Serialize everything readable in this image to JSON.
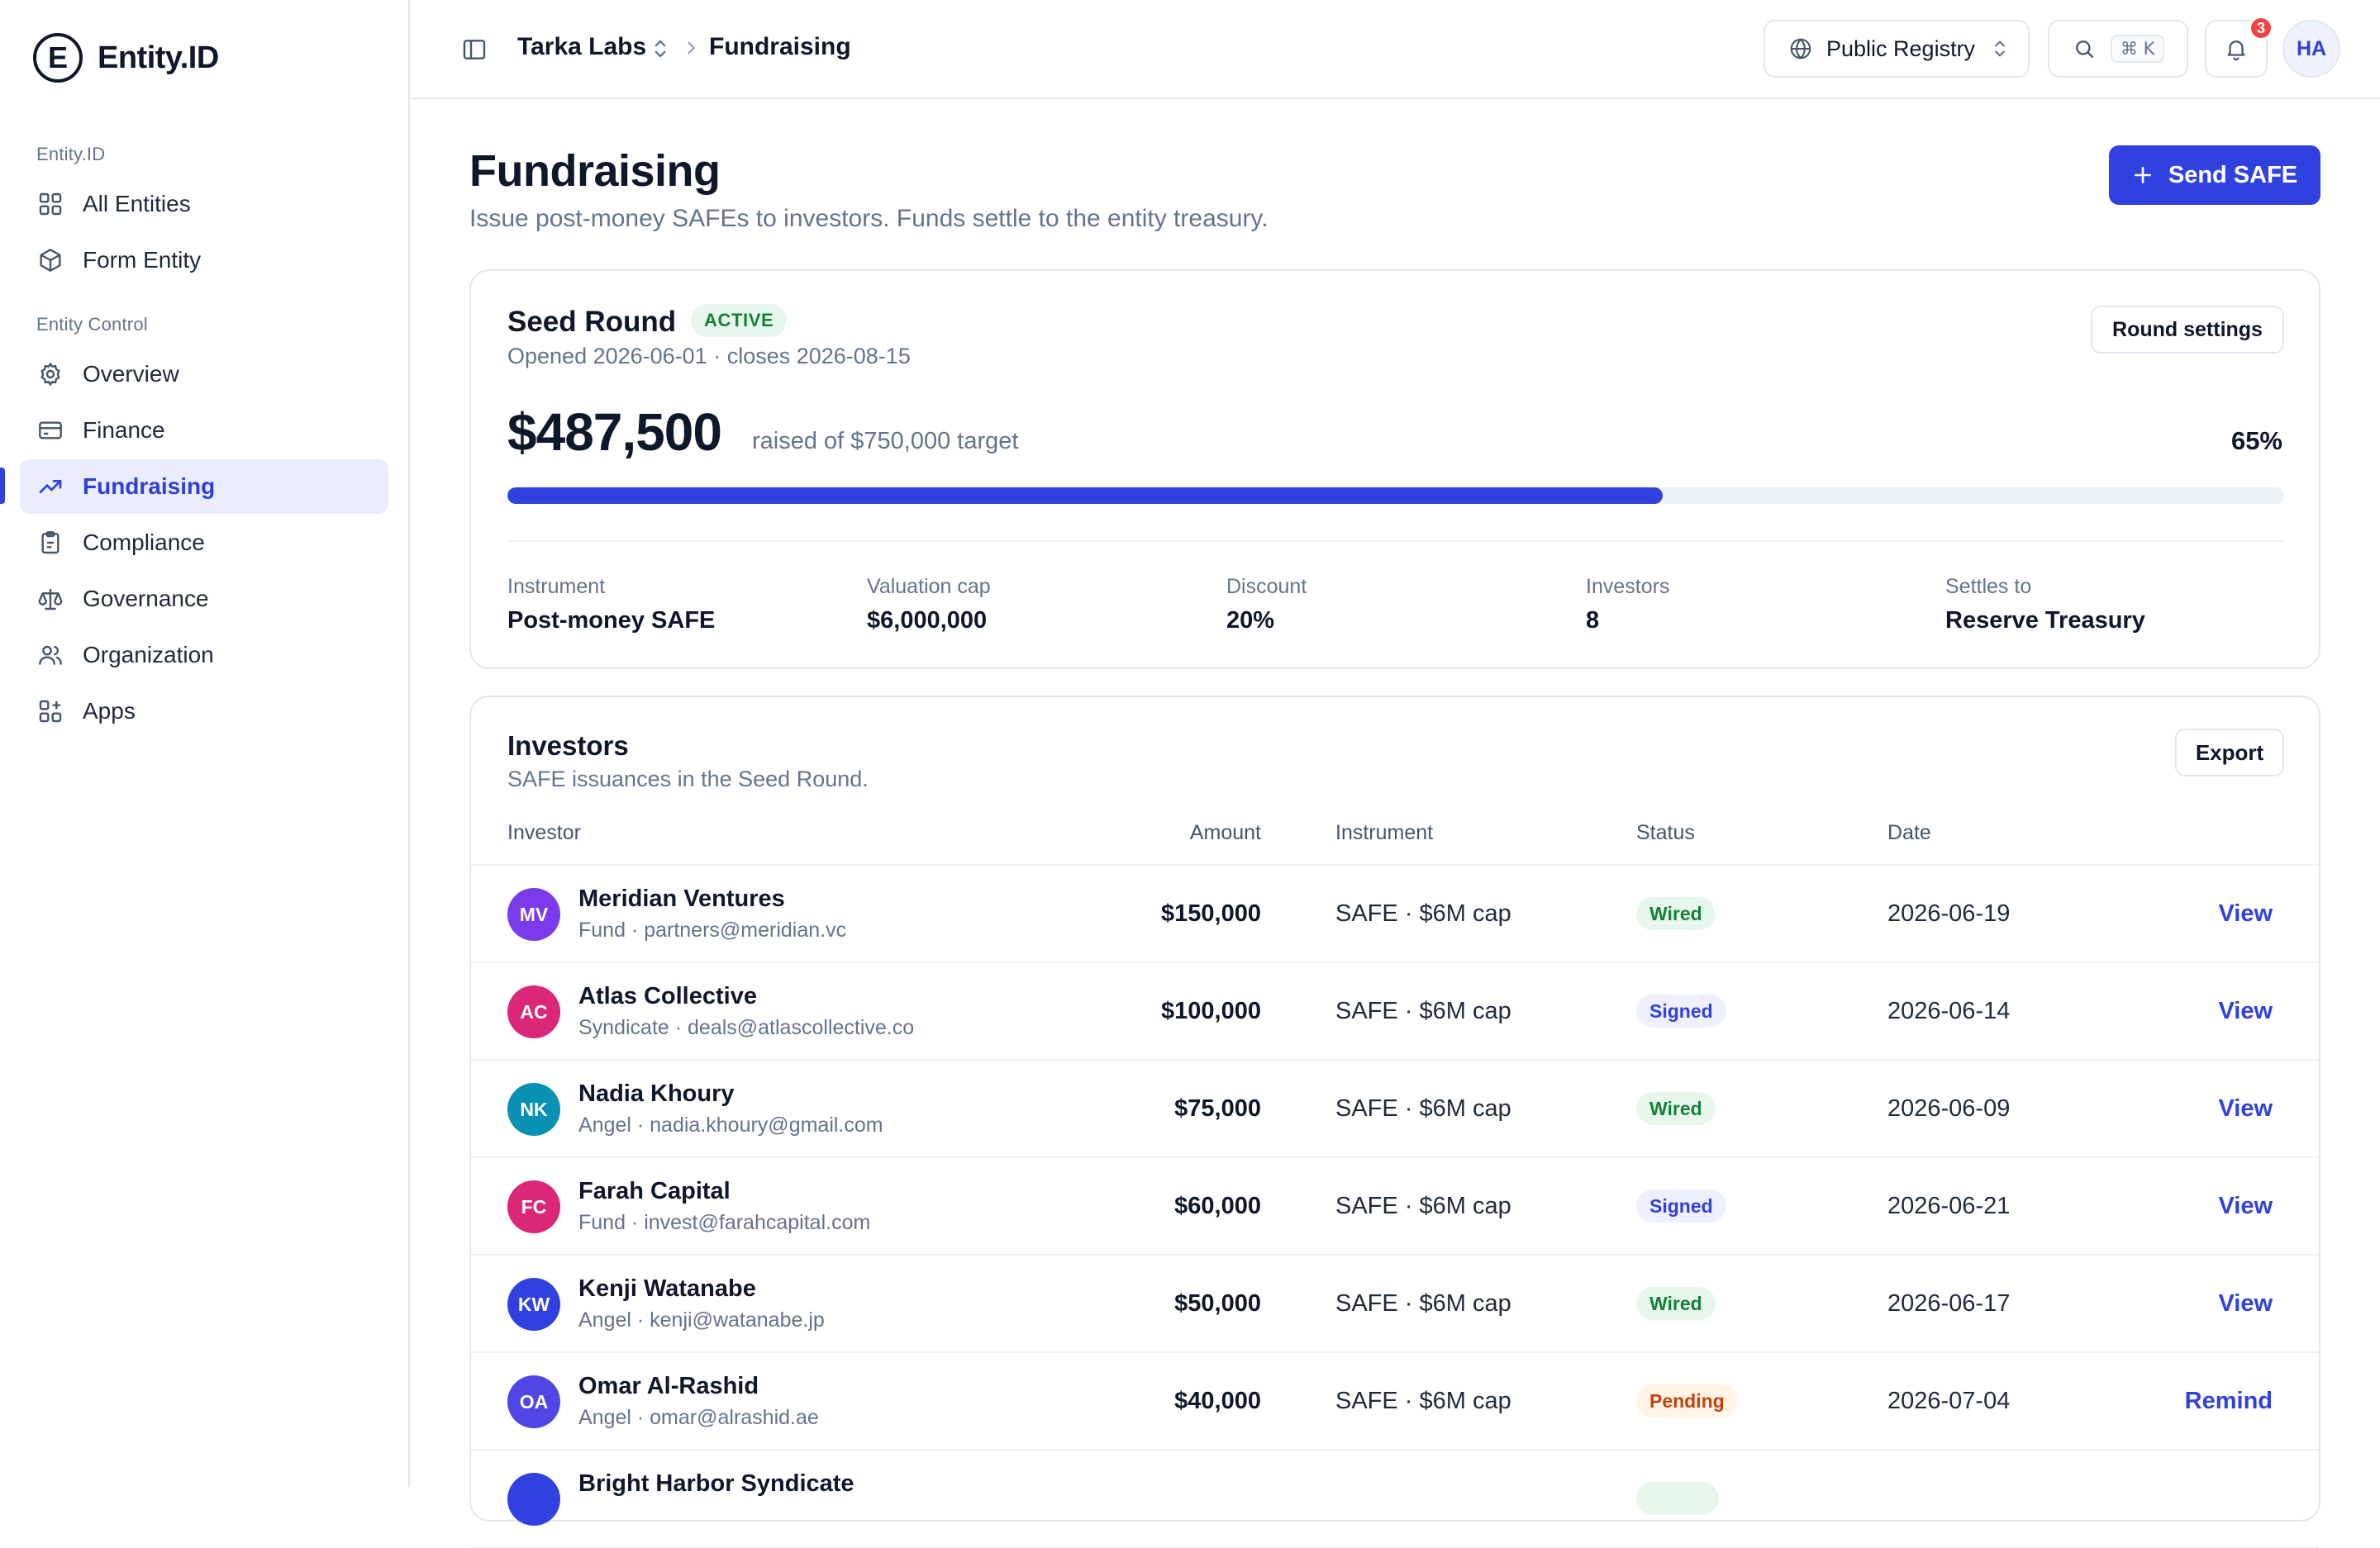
{
  "brand": {
    "mark": "E",
    "name": "Entity.ID"
  },
  "sidebar": {
    "section1": "Entity.ID",
    "section2": "Entity Control",
    "items": [
      {
        "label": "All Entities",
        "icon": "grid-icon"
      },
      {
        "label": "Form Entity",
        "icon": "cube-icon"
      },
      {
        "label": "Overview",
        "icon": "gear-icon"
      },
      {
        "label": "Finance",
        "icon": "card-icon"
      },
      {
        "label": "Fundraising",
        "icon": "trending-up-icon",
        "active": true
      },
      {
        "label": "Compliance",
        "icon": "clipboard-icon"
      },
      {
        "label": "Governance",
        "icon": "scale-icon"
      },
      {
        "label": "Organization",
        "icon": "users-icon"
      },
      {
        "label": "Apps",
        "icon": "apps-icon"
      }
    ]
  },
  "topbar": {
    "org": "Tarka Labs",
    "page": "Fundraising",
    "registry": "Public Registry",
    "shortcut": "⌘ K",
    "notifications": "3",
    "avatar": "HA"
  },
  "page": {
    "title": "Fundraising",
    "subtitle": "Issue post-money SAFEs to investors. Funds settle to the entity treasury.",
    "cta": "Send SAFE"
  },
  "round": {
    "name": "Seed Round",
    "status": "ACTIVE",
    "dates": "Opened 2026-06-01 · closes 2026-08-15",
    "settings": "Round settings",
    "raised": "$487,500",
    "target": "raised of $750,000 target",
    "percent": "65%",
    "progress": 0.65,
    "stats": [
      {
        "label": "Instrument",
        "value": "Post-money SAFE"
      },
      {
        "label": "Valuation cap",
        "value": "$6,000,000"
      },
      {
        "label": "Discount",
        "value": "20%"
      },
      {
        "label": "Investors",
        "value": "8"
      },
      {
        "label": "Settles to",
        "value": "Reserve Treasury"
      }
    ]
  },
  "investors": {
    "title": "Investors",
    "subtitle": "SAFE issuances in the Seed Round.",
    "export": "Export",
    "columns": {
      "investor": "Investor",
      "amount": "Amount",
      "instrument": "Instrument",
      "status": "Status",
      "date": "Date"
    },
    "rows": [
      {
        "initials": "MV",
        "color": "#7c3aed",
        "name": "Meridian Ventures",
        "meta": "Fund · partners@meridian.vc",
        "amount": "$150,000",
        "instrument": "SAFE · $6M cap",
        "status": "Wired",
        "status_kind": "wired",
        "date": "2026-06-19",
        "action": "View"
      },
      {
        "initials": "AC",
        "color": "#db2777",
        "name": "Atlas Collective",
        "meta": "Syndicate · deals@atlascollective.co",
        "amount": "$100,000",
        "instrument": "SAFE · $6M cap",
        "status": "Signed",
        "status_kind": "signed",
        "date": "2026-06-14",
        "action": "View"
      },
      {
        "initials": "NK",
        "color": "#0891b2",
        "name": "Nadia Khoury",
        "meta": "Angel · nadia.khoury@gmail.com",
        "amount": "$75,000",
        "instrument": "SAFE · $6M cap",
        "status": "Wired",
        "status_kind": "wired",
        "date": "2026-06-09",
        "action": "View"
      },
      {
        "initials": "FC",
        "color": "#db2777",
        "name": "Farah Capital",
        "meta": "Fund · invest@farahcapital.com",
        "amount": "$60,000",
        "instrument": "SAFE · $6M cap",
        "status": "Signed",
        "status_kind": "signed",
        "date": "2026-06-21",
        "action": "View"
      },
      {
        "initials": "KW",
        "color": "#3041e0",
        "name": "Kenji Watanabe",
        "meta": "Angel · kenji@watanabe.jp",
        "amount": "$50,000",
        "instrument": "SAFE · $6M cap",
        "status": "Wired",
        "status_kind": "wired",
        "date": "2026-06-17",
        "action": "View"
      },
      {
        "initials": "OA",
        "color": "#4f46e5",
        "name": "Omar Al-Rashid",
        "meta": "Angel · omar@alrashid.ae",
        "amount": "$40,000",
        "instrument": "SAFE · $6M cap",
        "status": "Pending",
        "status_kind": "pending",
        "date": "2026-07-04",
        "action": "Remind"
      },
      {
        "initials": "",
        "color": "#3041e0",
        "name": "Bright Harbor Syndicate",
        "meta": "",
        "amount": "",
        "instrument": "",
        "status": "",
        "status_kind": "wired",
        "date": "",
        "action": ""
      }
    ]
  }
}
